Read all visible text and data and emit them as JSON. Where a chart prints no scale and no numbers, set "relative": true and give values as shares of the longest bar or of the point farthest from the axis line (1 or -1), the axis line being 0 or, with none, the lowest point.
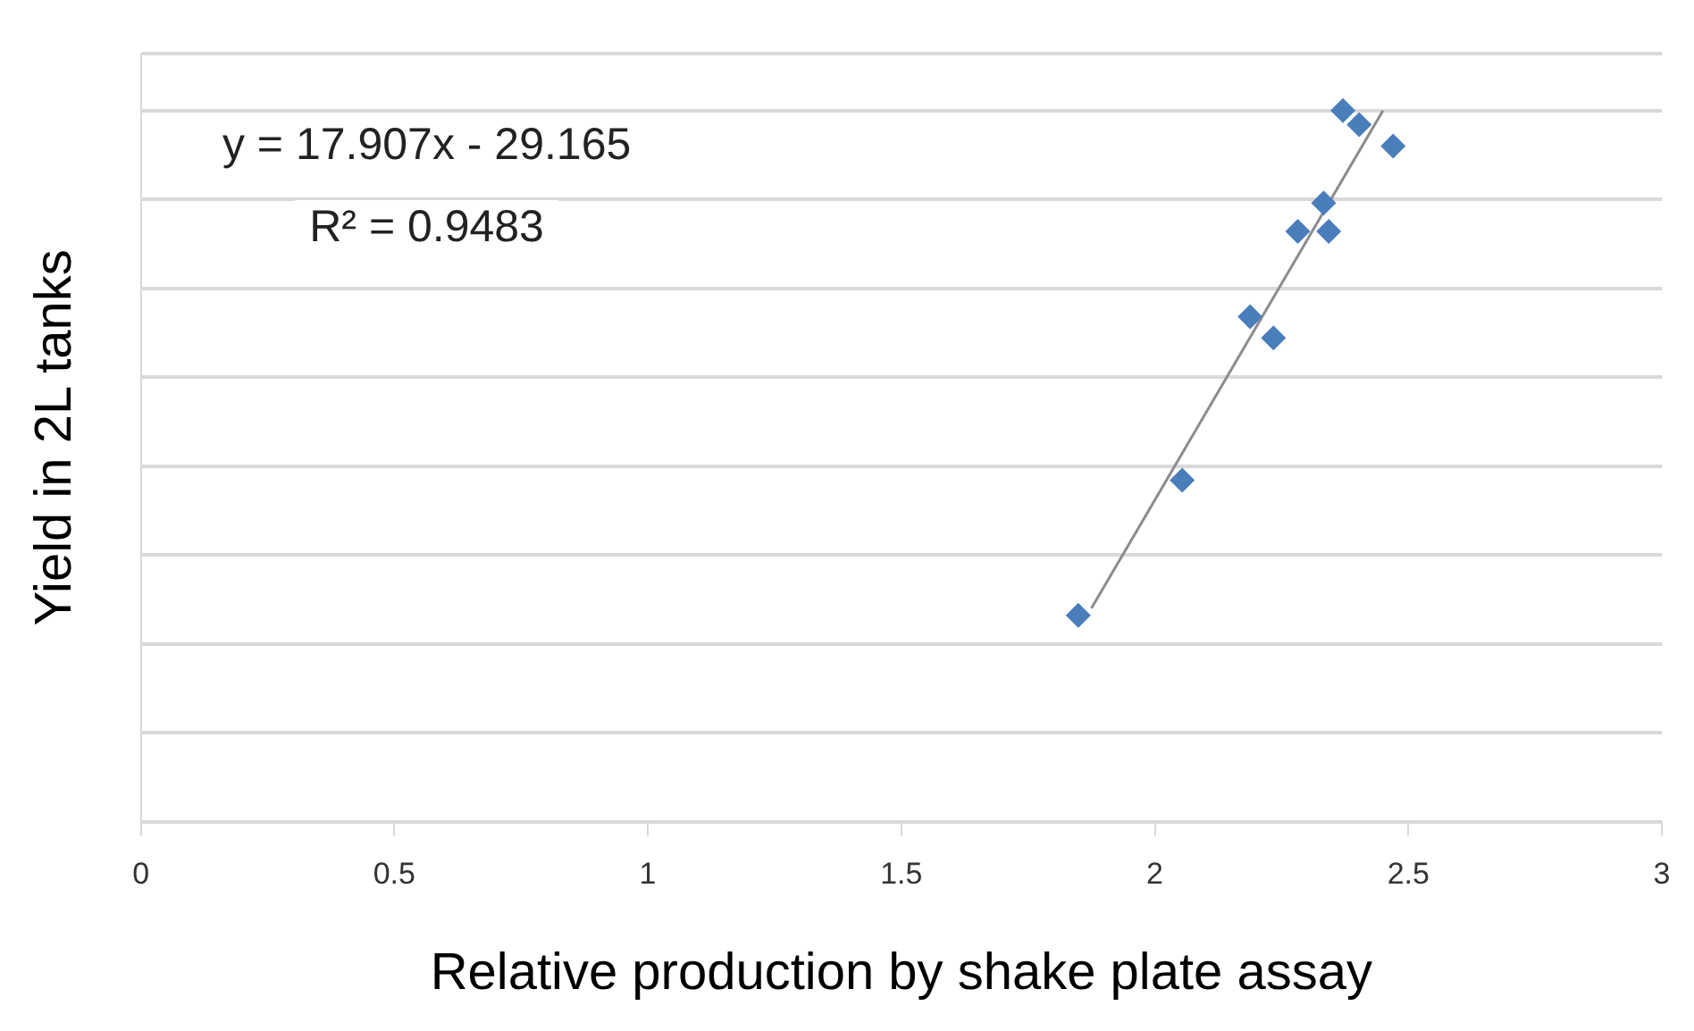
{
  "chart_data": {
    "type": "scatter",
    "relative": true,
    "xlabel": "Relative production by shake plate assay",
    "ylabel": "Yield in 2L tanks",
    "xlim": [
      0,
      3
    ],
    "xticks": [
      0,
      0.5,
      1,
      1.5,
      2,
      2.5,
      3
    ],
    "grid": "y",
    "legend": false,
    "annotations": [
      "y = 17.907x - 29.165",
      "R² = 0.9483"
    ],
    "series": [
      {
        "marker": "diamond",
        "color": "#4a7ebb",
        "x": [
          1.849,
          2.054,
          2.188,
          2.234,
          2.282,
          2.333,
          2.343,
          2.371,
          2.403,
          2.47
        ],
        "values": [
          0.29,
          0.48,
          0.71,
          0.68,
          0.83,
          0.87,
          0.83,
          1,
          0.98,
          0.95
        ]
      },
      {
        "type": "line",
        "color": "#8c8c8c",
        "x": [
          1.875,
          2.45
        ],
        "values": [
          0.3,
          1
        ]
      }
    ]
  }
}
